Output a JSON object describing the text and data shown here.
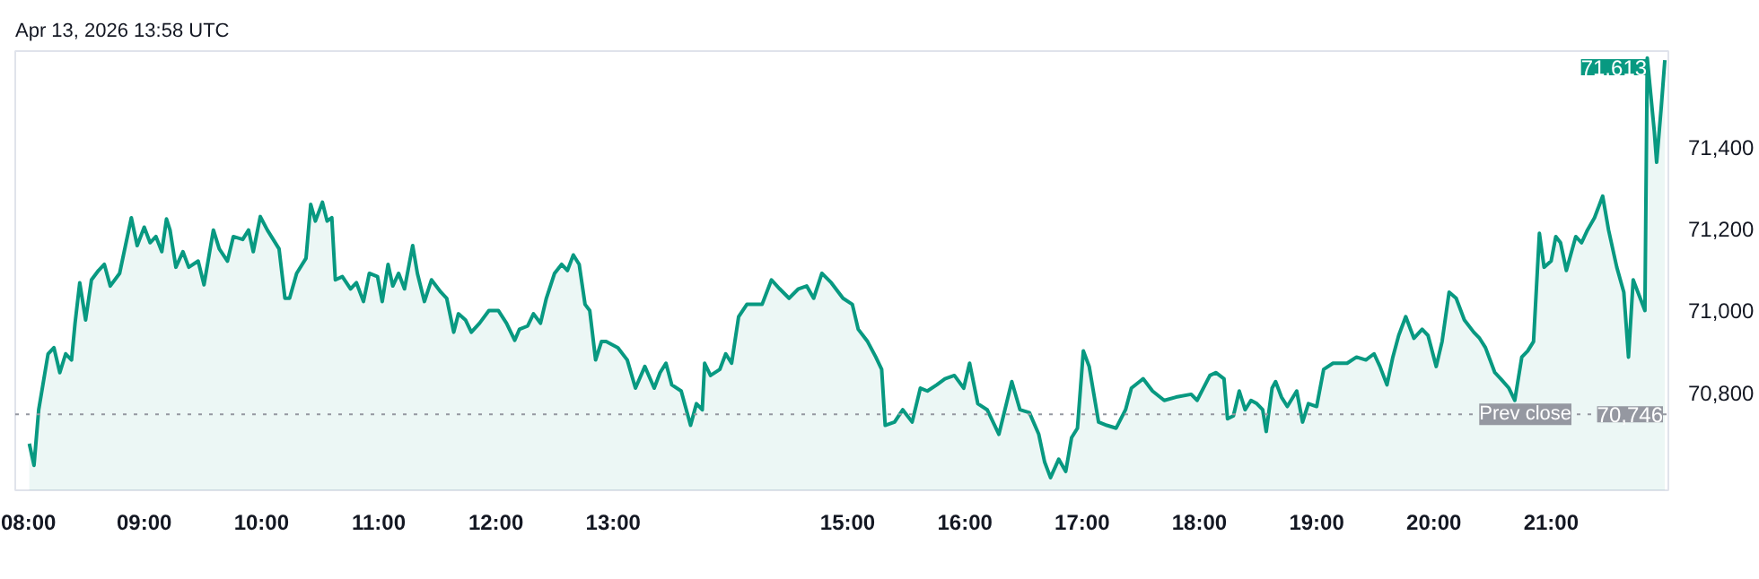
{
  "chart_data": {
    "type": "area",
    "title": "Apr 13, 2026 13:58 UTC",
    "x": [
      8.02,
      8.06,
      8.1,
      8.18,
      8.23,
      8.28,
      8.33,
      8.38,
      8.41,
      8.45,
      8.5,
      8.55,
      8.61,
      8.66,
      8.71,
      8.79,
      8.84,
      8.89,
      8.94,
      9.0,
      9.05,
      9.1,
      9.15,
      9.19,
      9.22,
      9.27,
      9.33,
      9.38,
      9.46,
      9.51,
      9.59,
      9.64,
      9.71,
      9.76,
      9.84,
      9.89,
      9.93,
      9.99,
      10.05,
      10.15,
      10.2,
      10.24,
      10.3,
      10.38,
      10.42,
      10.46,
      10.52,
      10.56,
      10.6,
      10.63,
      10.69,
      10.76,
      10.81,
      10.87,
      10.92,
      10.99,
      11.03,
      11.08,
      11.12,
      11.17,
      11.22,
      11.29,
      11.33,
      11.39,
      11.45,
      11.53,
      11.58,
      11.64,
      11.68,
      11.74,
      11.79,
      11.86,
      11.94,
      12.02,
      12.09,
      12.16,
      12.2,
      12.27,
      12.32,
      12.38,
      12.43,
      12.5,
      12.56,
      12.61,
      12.66,
      12.71,
      12.76,
      12.8,
      12.85,
      12.9,
      12.94,
      13.04,
      13.12,
      13.19,
      13.27,
      13.35,
      13.4,
      13.45,
      13.5,
      13.58,
      13.66,
      13.71,
      13.76,
      13.78,
      13.83,
      13.91,
      13.96,
      14.01,
      14.07,
      14.14,
      14.27,
      14.35,
      14.42,
      14.5,
      14.58,
      14.65,
      14.71,
      14.78,
      14.86,
      14.96,
      15.04,
      15.09,
      15.17,
      15.24,
      15.29,
      15.32,
      15.4,
      15.47,
      15.55,
      15.62,
      15.68,
      15.76,
      15.83,
      15.91,
      15.99,
      16.04,
      16.11,
      16.19,
      16.29,
      16.4,
      16.47,
      16.55,
      16.63,
      16.68,
      16.73,
      16.8,
      16.86,
      16.91,
      16.96,
      17.01,
      17.06,
      17.14,
      17.21,
      17.29,
      17.37,
      17.42,
      17.52,
      17.6,
      17.7,
      17.8,
      17.93,
      17.98,
      18.09,
      18.14,
      18.21,
      18.24,
      18.29,
      18.34,
      18.39,
      18.44,
      18.49,
      18.54,
      18.57,
      18.62,
      18.65,
      18.7,
      18.75,
      18.83,
      18.88,
      18.93,
      19.0,
      19.06,
      19.14,
      19.26,
      19.34,
      19.42,
      19.49,
      19.54,
      19.6,
      19.65,
      19.7,
      19.76,
      19.83,
      19.9,
      19.95,
      20.02,
      20.07,
      20.13,
      20.19,
      20.26,
      20.34,
      20.39,
      20.44,
      20.52,
      20.57,
      20.64,
      20.69,
      20.75,
      20.8,
      20.85,
      20.9,
      20.94,
      21.0,
      21.04,
      21.08,
      21.13,
      21.21,
      21.26,
      21.31,
      21.37,
      21.44,
      21.49,
      21.56,
      21.62,
      21.66,
      21.7,
      21.76,
      21.8,
      21.82,
      21.88,
      21.9,
      21.94,
      21.97
    ],
    "series": [
      {
        "color": "#089981",
        "values": [
          70674,
          70621,
          70757,
          70894,
          70909,
          70848,
          70894,
          70879,
          70969,
          71068,
          70977,
          71075,
          71098,
          71113,
          71060,
          71091,
          71159,
          71227,
          71159,
          71204,
          71166,
          71181,
          71144,
          71224,
          71197,
          71106,
          71144,
          71106,
          71121,
          71063,
          71197,
          71151,
          71121,
          71181,
          71174,
          71197,
          71144,
          71230,
          71197,
          71151,
          71030,
          71030,
          71091,
          71128,
          71260,
          71219,
          71265,
          71219,
          71227,
          71075,
          71083,
          71053,
          71068,
          71022,
          71091,
          71083,
          71022,
          71113,
          71060,
          71091,
          71053,
          71159,
          71091,
          71022,
          71075,
          71045,
          71030,
          70947,
          70992,
          70977,
          70947,
          70969,
          71000,
          71000,
          70969,
          70927,
          70954,
          70962,
          70992,
          70969,
          71030,
          71091,
          71113,
          71098,
          71136,
          71113,
          71015,
          71000,
          70879,
          70924,
          70924,
          70909,
          70879,
          70810,
          70863,
          70810,
          70848,
          70871,
          70818,
          70803,
          70719,
          70772,
          70757,
          70871,
          70841,
          70856,
          70894,
          70871,
          70985,
          71015,
          71015,
          71075,
          71053,
          71030,
          71053,
          71060,
          71030,
          71091,
          71068,
          71030,
          71015,
          70954,
          70924,
          70886,
          70856,
          70719,
          70727,
          70757,
          70727,
          70810,
          70803,
          70818,
          70833,
          70841,
          70810,
          70871,
          70772,
          70757,
          70697,
          70826,
          70757,
          70750,
          70697,
          70629,
          70591,
          70636,
          70606,
          70689,
          70712,
          70901,
          70863,
          70727,
          70719,
          70712,
          70757,
          70810,
          70833,
          70803,
          70780,
          70788,
          70795,
          70780,
          70841,
          70848,
          70833,
          70735,
          70742,
          70803,
          70757,
          70780,
          70772,
          70757,
          70704,
          70810,
          70826,
          70788,
          70765,
          70803,
          70727,
          70772,
          70765,
          70856,
          70871,
          70871,
          70886,
          70879,
          70894,
          70863,
          70818,
          70886,
          70939,
          70985,
          70932,
          70954,
          70939,
          70863,
          70924,
          71045,
          71030,
          70977,
          70947,
          70932,
          70909,
          70848,
          70833,
          70810,
          70780,
          70886,
          70901,
          70924,
          71189,
          71106,
          71121,
          71181,
          71166,
          71098,
          71181,
          71166,
          71197,
          71227,
          71280,
          71197,
          71106,
          71045,
          70886,
          71075,
          71030,
          71000,
          71618,
          71439,
          71363,
          71500,
          71613
        ]
      }
    ],
    "xlim": [
      7.9,
      22.0
    ],
    "xticks": [
      {
        "value": 8,
        "label": "08:00"
      },
      {
        "value": 9,
        "label": "09:00"
      },
      {
        "value": 10,
        "label": "10:00"
      },
      {
        "value": 11,
        "label": "11:00"
      },
      {
        "value": 12,
        "label": "12:00"
      },
      {
        "value": 13,
        "label": "13:00"
      },
      {
        "value": 15,
        "label": "15:00"
      },
      {
        "value": 16,
        "label": "16:00"
      },
      {
        "value": 17,
        "label": "17:00"
      },
      {
        "value": 18,
        "label": "18:00"
      },
      {
        "value": 19,
        "label": "19:00"
      },
      {
        "value": 20,
        "label": "20:00"
      },
      {
        "value": 21,
        "label": "21:00"
      }
    ],
    "ylim": [
      70560,
      71635
    ],
    "yticks": [
      {
        "value": 70800,
        "label": "70,800"
      },
      {
        "value": 71000,
        "label": "71,000"
      },
      {
        "value": 71200,
        "label": "71,200"
      },
      {
        "value": 71400,
        "label": "71,400"
      }
    ],
    "ref_lines": [
      {
        "axis": "y",
        "value": 70746,
        "label": "Prev close",
        "color": "#9598a1",
        "line_style": "dotted"
      }
    ],
    "annotations": [
      {
        "text": "71,613",
        "x": 21.97,
        "y": 71613
      },
      {
        "text": "70,746",
        "x": 22.0,
        "y": 70746
      }
    ],
    "grid": false
  }
}
